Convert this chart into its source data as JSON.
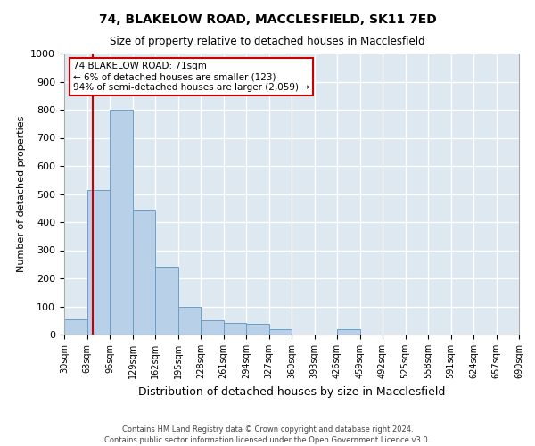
{
  "title": "74, BLAKELOW ROAD, MACCLESFIELD, SK11 7ED",
  "subtitle": "Size of property relative to detached houses in Macclesfield",
  "xlabel": "Distribution of detached houses by size in Macclesfield",
  "ylabel": "Number of detached properties",
  "footer_line1": "Contains HM Land Registry data © Crown copyright and database right 2024.",
  "footer_line2": "Contains public sector information licensed under the Open Government Licence v3.0.",
  "annotation_line1": "74 BLAKELOW ROAD: 71sqm",
  "annotation_line2": "← 6% of detached houses are smaller (123)",
  "annotation_line3": "94% of semi-detached houses are larger (2,059) →",
  "subject_value": 71,
  "bar_edges": [
    30,
    63,
    96,
    129,
    162,
    195,
    228,
    261,
    294,
    327,
    360,
    393,
    426,
    459,
    492,
    525,
    558,
    591,
    624,
    657,
    690
  ],
  "bar_heights": [
    55,
    515,
    800,
    445,
    240,
    98,
    50,
    40,
    38,
    18,
    0,
    0,
    18,
    0,
    0,
    0,
    0,
    0,
    0,
    0
  ],
  "bar_color": "#b8d0e8",
  "bar_edge_color": "#6a9fc8",
  "vline_color": "#cc0000",
  "background_color": "#dde8f0",
  "grid_color": "#ffffff",
  "fig_background": "#ffffff",
  "annotation_box_color": "#ffffff",
  "annotation_box_edge": "#cc0000",
  "ylim": [
    0,
    1000
  ],
  "yticks": [
    0,
    100,
    200,
    300,
    400,
    500,
    600,
    700,
    800,
    900,
    1000
  ]
}
